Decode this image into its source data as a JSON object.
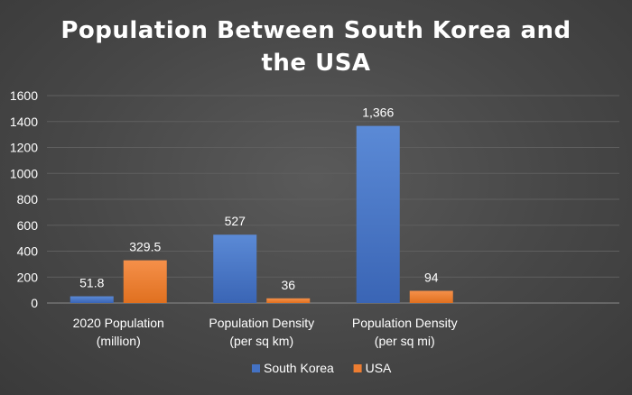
{
  "chart_data": {
    "type": "bar",
    "title_lines": [
      "Population Between South Korea and",
      "the USA"
    ],
    "categories": [
      [
        "2020 Population",
        "(million)"
      ],
      [
        "Population Density",
        "(per sq km)"
      ],
      [
        "Population Density",
        "(per sq mi)"
      ],
      [
        "",
        ""
      ]
    ],
    "series": [
      {
        "name": "South Korea",
        "color": "#4472c4",
        "values": [
          51.8,
          527,
          1366,
          null
        ],
        "data_labels": [
          "51.8",
          "527",
          "1,366",
          ""
        ]
      },
      {
        "name": "USA",
        "color": "#ed7d31",
        "values": [
          329.5,
          36,
          94,
          null
        ],
        "data_labels": [
          "329.5",
          "36",
          "94",
          ""
        ]
      }
    ],
    "yticks": [
      "0",
      "200",
      "400",
      "600",
      "800",
      "1000",
      "1200",
      "1400",
      "1600"
    ],
    "ylim": [
      0,
      1600
    ],
    "grid": true,
    "legend_position": "bottom"
  }
}
